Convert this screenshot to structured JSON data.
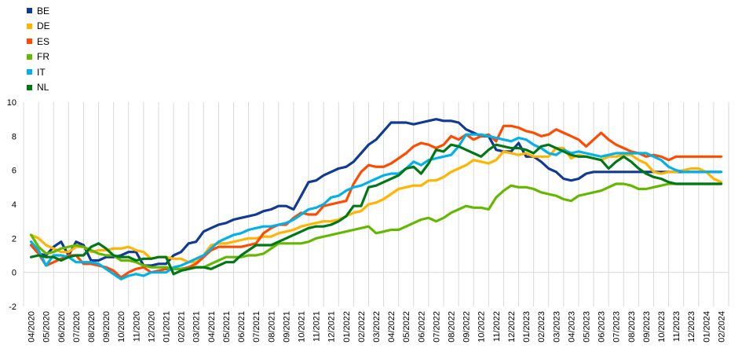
{
  "chart_data": {
    "type": "line",
    "title": "",
    "xlabel": "",
    "ylabel": "",
    "ylim": [
      -2,
      10
    ],
    "yticks": [
      -2,
      0,
      2,
      4,
      6,
      8,
      10
    ],
    "grid": "vertical",
    "legend_position": "top-left",
    "categories": [
      "04/2020",
      "05/2020",
      "06/2020",
      "07/2020",
      "08/2020",
      "09/2020",
      "10/2020",
      "11/2020",
      "12/2020",
      "01/2021",
      "02/2021",
      "03/2021",
      "04/2021",
      "05/2021",
      "06/2021",
      "07/2021",
      "08/2021",
      "09/2021",
      "10/2021",
      "11/2021",
      "12/2021",
      "01/2022",
      "02/2022",
      "03/2022",
      "04/2022",
      "05/2022",
      "06/2022",
      "07/2022",
      "08/2022",
      "09/2022",
      "10/2022",
      "11/2022",
      "12/2022",
      "01/2023",
      "02/2023",
      "03/2023",
      "04/2023",
      "05/2023",
      "06/2023",
      "07/2023",
      "08/2023",
      "09/2023",
      "10/2023",
      "11/2023",
      "12/2023",
      "01/2024",
      "02/2024"
    ],
    "x": [
      0,
      0.5,
      1,
      1.5,
      2,
      2.5,
      3,
      3.5,
      4,
      4.5,
      5,
      5.5,
      6,
      6.5,
      7,
      7.5,
      8,
      8.5,
      9,
      9.5,
      10,
      10.5,
      11,
      11.5,
      12,
      12.5,
      13,
      13.5,
      14,
      14.5,
      15,
      15.5,
      16,
      16.5,
      17,
      17.5,
      18,
      18.5,
      19,
      19.5,
      20,
      20.5,
      21,
      21.5,
      22,
      22.5,
      23,
      23.5,
      24,
      24.5,
      25,
      25.5,
      26,
      26.5,
      27,
      27.5,
      28,
      28.5,
      29,
      29.5,
      30,
      30.5,
      31,
      31.5,
      32,
      32.5,
      33,
      33.5,
      34,
      34.5,
      35,
      35.5,
      36,
      36.5,
      37,
      37.5,
      38,
      38.5,
      39,
      39.5,
      40,
      40.5,
      41,
      41.5,
      42,
      42.5,
      43,
      43.5,
      44,
      44.5,
      45,
      45.5,
      46
    ],
    "series": [
      {
        "name": "BE",
        "color": "#113a93",
        "values": [
          1.6,
          1.1,
          1.0,
          1.5,
          1.8,
          1.0,
          1.8,
          1.6,
          0.7,
          0.7,
          0.9,
          0.9,
          1.0,
          1.2,
          1.2,
          0.4,
          0.4,
          0.5,
          0.5,
          1.0,
          1.2,
          1.7,
          1.8,
          2.4,
          2.6,
          2.8,
          2.9,
          3.1,
          3.2,
          3.3,
          3.4,
          3.6,
          3.7,
          3.9,
          3.9,
          3.7,
          4.5,
          5.3,
          5.4,
          5.7,
          5.9,
          6.1,
          6.2,
          6.5,
          7.0,
          7.5,
          7.8,
          8.3,
          8.8,
          8.8,
          8.8,
          8.7,
          8.8,
          8.9,
          9.0,
          8.9,
          8.9,
          8.8,
          8.4,
          8.2,
          8.0,
          8.0,
          7.2,
          7.1,
          7.1,
          7.6,
          6.8,
          6.8,
          6.5,
          6.1,
          5.9,
          5.5,
          5.4,
          5.5,
          5.8,
          5.9,
          5.9,
          5.9,
          5.9,
          5.9,
          5.9,
          5.9,
          5.9,
          5.9,
          5.9,
          5.9,
          5.9,
          5.9,
          5.9,
          5.9,
          5.9,
          5.9,
          5.9
        ]
      },
      {
        "name": "DE",
        "color": "#ffb400",
        "values": [
          2.2,
          2.0,
          1.6,
          1.4,
          1.2,
          1.2,
          1.5,
          1.5,
          1.2,
          1.3,
          1.3,
          1.4,
          1.4,
          1.5,
          1.3,
          1.2,
          0.8,
          0.9,
          0.9,
          0.8,
          0.8,
          0.6,
          0.6,
          1.0,
          1.6,
          1.7,
          1.7,
          1.8,
          1.9,
          2.0,
          2.0,
          2.1,
          2.1,
          2.3,
          2.4,
          2.5,
          2.7,
          2.8,
          2.9,
          3.0,
          3.0,
          3.1,
          3.3,
          3.5,
          3.6,
          4.0,
          4.1,
          4.3,
          4.6,
          4.9,
          5.0,
          5.1,
          5.1,
          5.4,
          5.4,
          5.6,
          5.9,
          6.1,
          6.3,
          6.6,
          6.5,
          6.4,
          6.6,
          7.1,
          7.0,
          6.9,
          7.0,
          6.8,
          6.8,
          6.8,
          7.3,
          7.3,
          6.7,
          6.9,
          6.8,
          6.7,
          6.6,
          6.8,
          6.8,
          6.9,
          6.9,
          6.6,
          6.4,
          5.9,
          5.8,
          5.9,
          5.9,
          6.0,
          6.1,
          6.1,
          5.9,
          5.5,
          5.3
        ]
      },
      {
        "name": "ES",
        "color": "#ff4b00",
        "values": [
          1.6,
          1.1,
          0.4,
          0.6,
          0.8,
          1.0,
          1.0,
          0.5,
          0.5,
          0.4,
          0.3,
          0.1,
          -0.3,
          0.0,
          0.2,
          0.3,
          0.0,
          0.1,
          0.2,
          0.2,
          0.2,
          0.3,
          0.5,
          0.9,
          1.3,
          1.5,
          1.5,
          1.5,
          1.5,
          1.6,
          1.7,
          2.3,
          2.6,
          2.8,
          2.8,
          3.2,
          3.5,
          3.4,
          3.4,
          3.9,
          4.0,
          4.1,
          4.2,
          5.2,
          5.9,
          6.3,
          6.2,
          6.2,
          6.4,
          6.7,
          7.0,
          7.4,
          7.6,
          7.5,
          7.3,
          7.5,
          8.0,
          7.8,
          8.1,
          7.8,
          8.0,
          8.1,
          7.7,
          8.6,
          8.6,
          8.5,
          8.3,
          8.2,
          8.0,
          8.1,
          8.4,
          8.2,
          8.0,
          7.8,
          7.4,
          7.8,
          8.2,
          7.8,
          7.5,
          7.3,
          7.1,
          7.0,
          6.8,
          6.9,
          6.8,
          6.6,
          6.8,
          6.8,
          6.8,
          6.8,
          6.8,
          6.8,
          6.8
        ]
      },
      {
        "name": "FR",
        "color": "#65b800",
        "values": [
          2.2,
          1.5,
          1.1,
          1.2,
          1.4,
          1.5,
          1.6,
          1.5,
          1.3,
          1.1,
          1.0,
          1.0,
          0.7,
          0.7,
          0.6,
          0.4,
          0.3,
          0.3,
          0.3,
          0.2,
          0.2,
          0.2,
          0.3,
          0.3,
          0.5,
          0.7,
          0.9,
          0.9,
          0.9,
          1.0,
          1.0,
          1.1,
          1.4,
          1.7,
          1.7,
          1.7,
          1.7,
          1.8,
          2.0,
          2.1,
          2.2,
          2.3,
          2.4,
          2.5,
          2.6,
          2.7,
          2.3,
          2.4,
          2.5,
          2.5,
          2.7,
          2.9,
          3.1,
          3.2,
          3.0,
          3.2,
          3.5,
          3.7,
          3.9,
          3.8,
          3.8,
          3.7,
          4.4,
          4.8,
          5.1,
          5.0,
          5.0,
          4.9,
          4.7,
          4.6,
          4.5,
          4.3,
          4.2,
          4.5,
          4.6,
          4.7,
          4.8,
          5.0,
          5.2,
          5.2,
          5.1,
          4.9,
          4.9,
          5.0,
          5.1,
          5.2,
          5.2,
          5.2,
          5.2,
          5.2,
          5.2,
          5.2,
          5.2
        ]
      },
      {
        "name": "IT",
        "color": "#00b1ea",
        "values": [
          1.8,
          1.3,
          0.4,
          1.0,
          1.0,
          0.9,
          0.6,
          0.6,
          0.6,
          0.5,
          0.2,
          -0.1,
          -0.4,
          -0.2,
          -0.1,
          -0.2,
          0.0,
          0.0,
          0.0,
          0.3,
          0.4,
          0.6,
          0.8,
          1.0,
          1.4,
          1.8,
          2.0,
          2.2,
          2.3,
          2.5,
          2.6,
          2.7,
          2.7,
          2.8,
          2.9,
          3.1,
          3.4,
          3.7,
          3.8,
          4.0,
          4.4,
          4.5,
          4.8,
          5.0,
          5.1,
          5.3,
          5.5,
          5.7,
          5.8,
          5.8,
          6.1,
          6.5,
          6.3,
          6.6,
          6.7,
          6.8,
          6.9,
          7.4,
          8.1,
          8.1,
          8.1,
          8.0,
          7.9,
          7.8,
          7.7,
          7.9,
          7.8,
          7.5,
          7.3,
          7.0,
          6.9,
          7.2,
          7.0,
          7.1,
          7.0,
          6.9,
          6.8,
          6.9,
          7.0,
          7.0,
          7.0,
          7.0,
          7.0,
          6.8,
          6.6,
          6.2,
          6.0,
          5.9,
          5.9,
          5.9,
          5.9,
          5.9,
          5.9
        ]
      },
      {
        "name": "NL",
        "color": "#007816",
        "values": [
          0.9,
          1.0,
          0.9,
          0.9,
          0.7,
          0.9,
          1.0,
          1.0,
          1.5,
          1.7,
          1.4,
          1.0,
          0.9,
          0.9,
          0.7,
          0.8,
          0.8,
          0.9,
          0.9,
          -0.1,
          0.1,
          0.2,
          0.3,
          0.3,
          0.2,
          0.4,
          0.6,
          0.6,
          1.0,
          1.3,
          1.6,
          1.6,
          1.6,
          1.8,
          2.0,
          2.2,
          2.4,
          2.6,
          2.7,
          2.7,
          2.8,
          3.0,
          3.3,
          3.9,
          3.9,
          5.0,
          5.1,
          5.3,
          5.5,
          5.7,
          6.1,
          6.2,
          5.8,
          6.4,
          7.2,
          7.1,
          7.5,
          7.4,
          7.2,
          7.0,
          6.8,
          7.2,
          7.5,
          7.4,
          7.3,
          7.3,
          7.2,
          7.0,
          7.4,
          7.5,
          7.3,
          7.1,
          6.9,
          6.8,
          6.8,
          6.7,
          6.6,
          6.1,
          6.5,
          6.8,
          6.5,
          6.1,
          5.8,
          5.6,
          5.5,
          5.3,
          5.2,
          5.2,
          5.2,
          5.2,
          5.2,
          5.2,
          5.2
        ]
      }
    ]
  }
}
